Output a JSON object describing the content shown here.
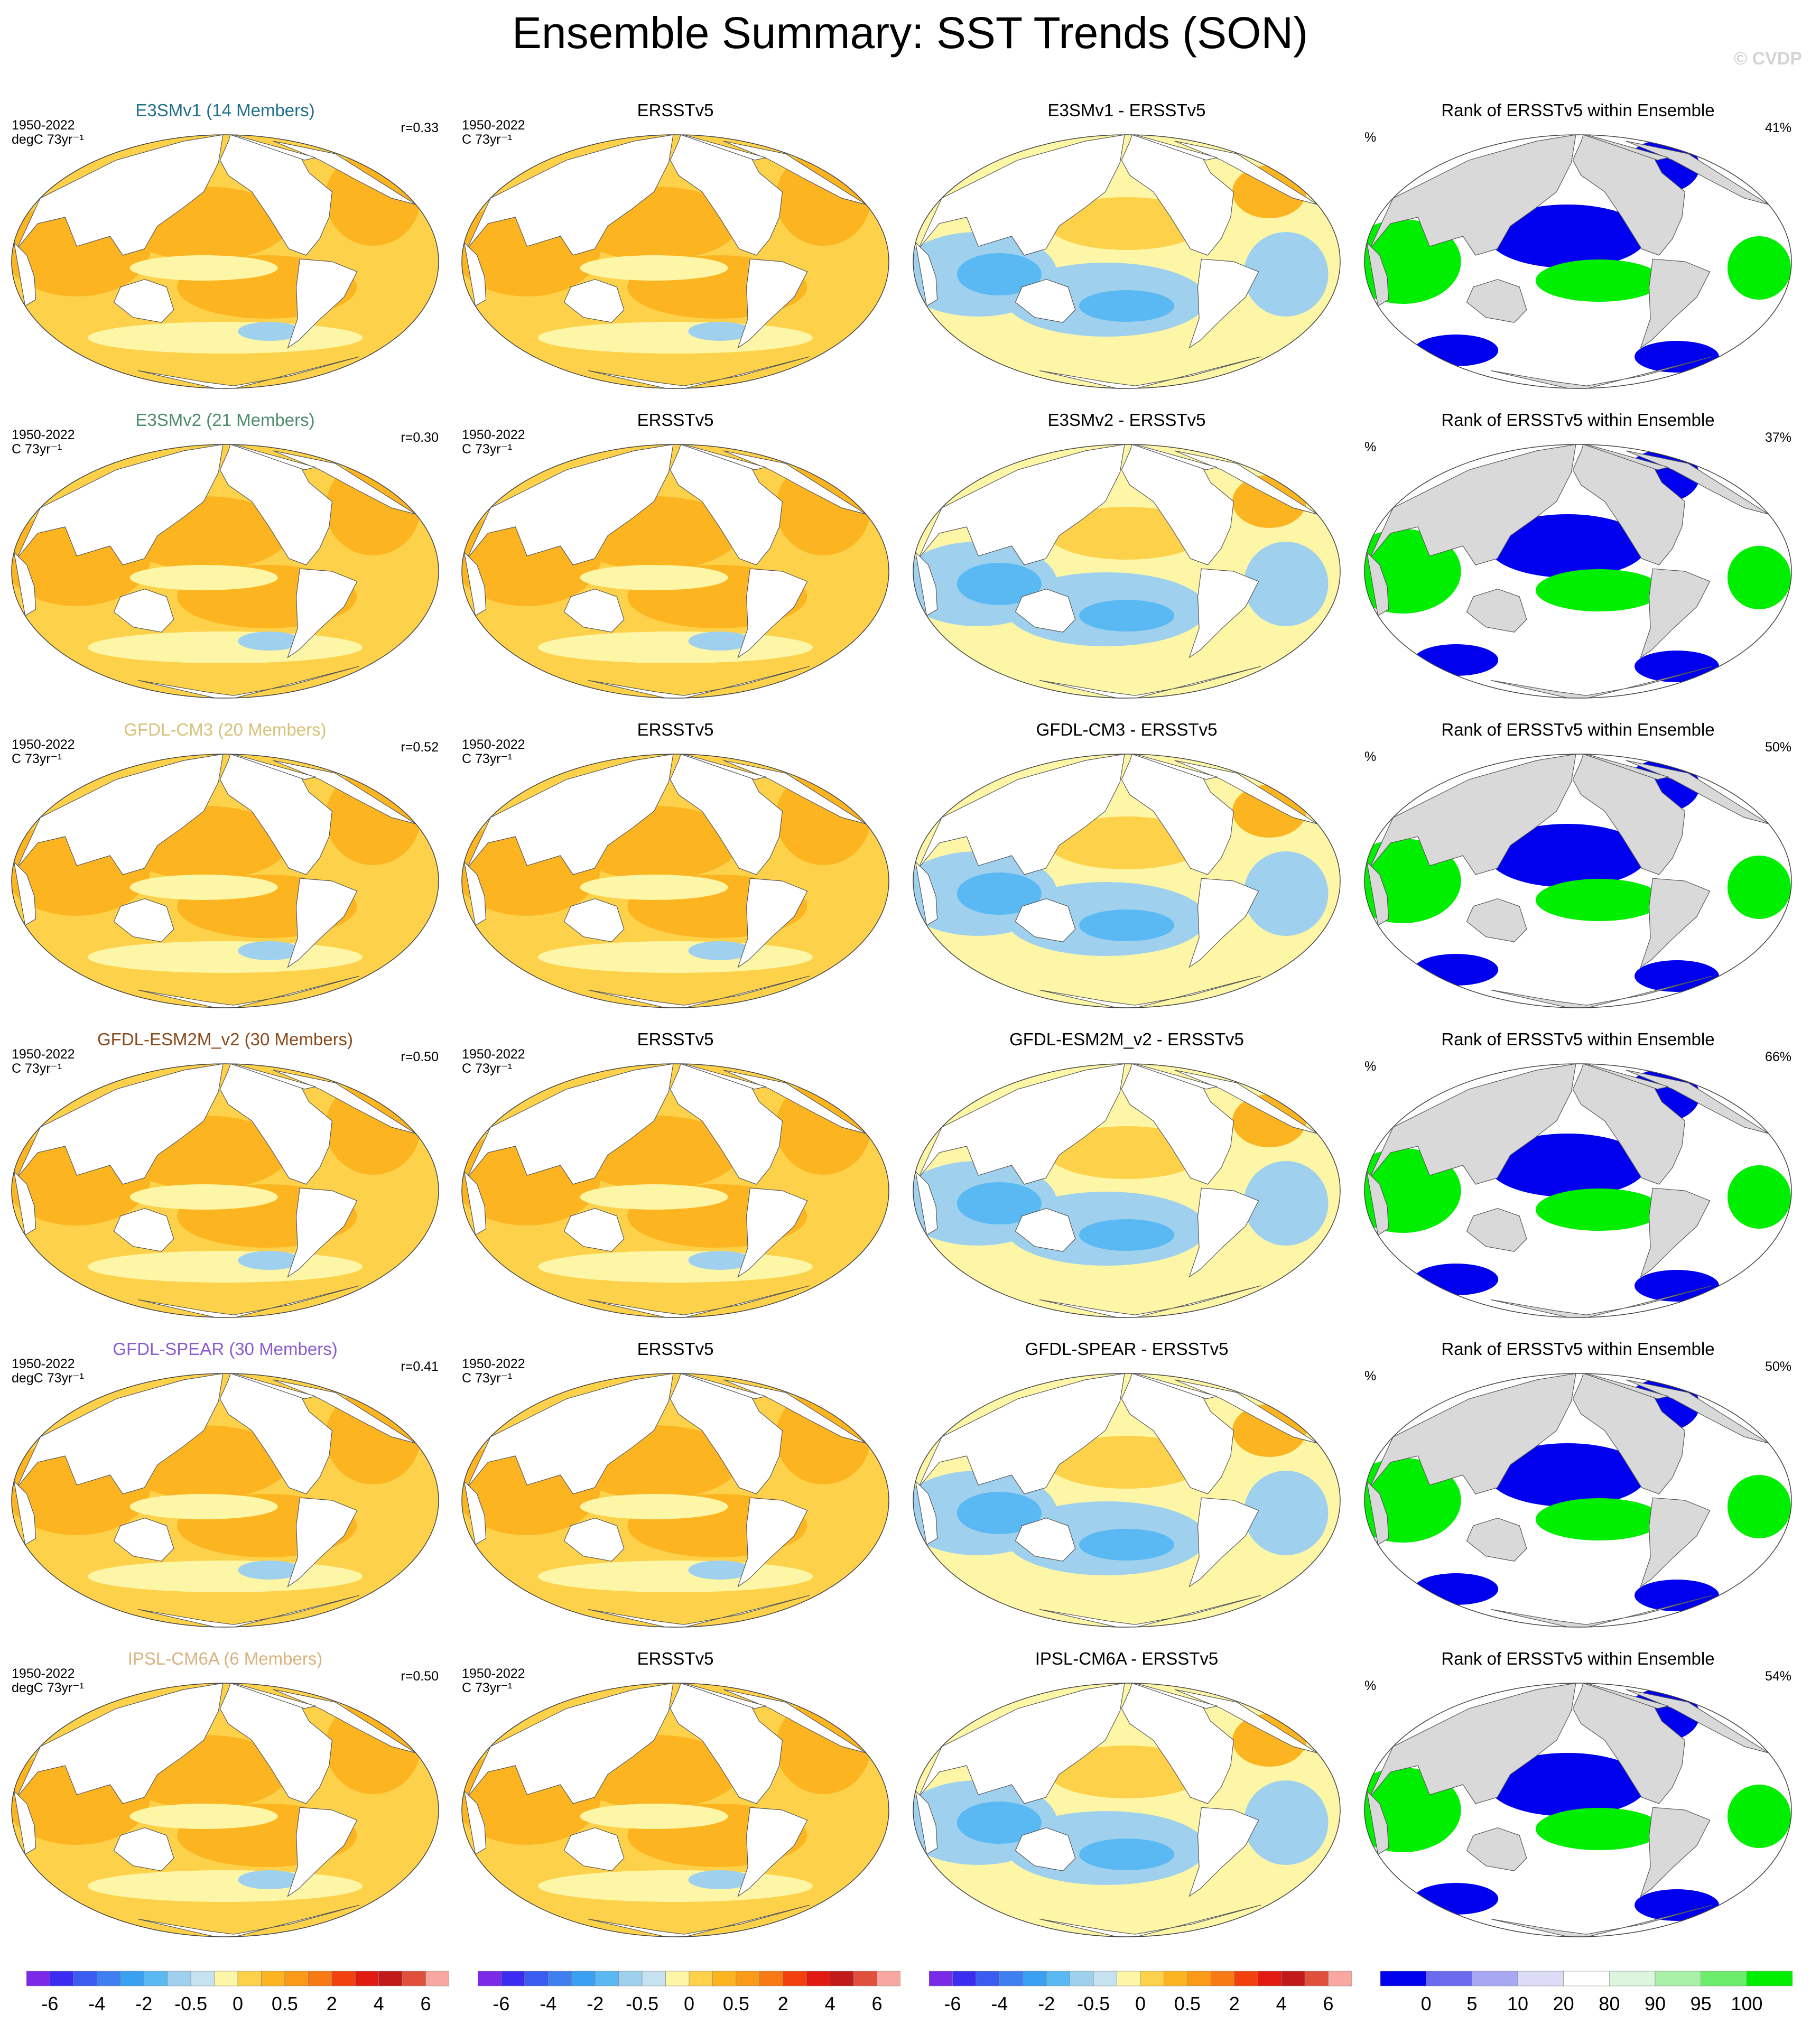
{
  "title": "Ensemble Summary: SST Trends (SON)",
  "watermark": "© CVDP",
  "obs_title": "ERSSTv5",
  "rank_title": "Rank of ERSSTv5 within Ensemble",
  "percent_symbol": "%",
  "period": "1950-2022",
  "obs_units": "C 73yr⁻¹",
  "rows": [
    {
      "model_title": "E3SMv1 (14 Members)",
      "title_color": "#1f6f8b",
      "units": "degC 73yr⁻¹",
      "r": "r=0.33",
      "diff_title": "E3SMv1 - ERSSTv5",
      "rank_pct": "41%"
    },
    {
      "model_title": "E3SMv2 (21 Members)",
      "title_color": "#4c8c6a",
      "units": "C 73yr⁻¹",
      "r": "r=0.30",
      "diff_title": "E3SMv2 - ERSSTv5",
      "rank_pct": "37%"
    },
    {
      "model_title": "GFDL-CM3 (20 Members)",
      "title_color": "#d6c27a",
      "units": "C 73yr⁻¹",
      "r": "r=0.52",
      "diff_title": "GFDL-CM3 - ERSSTv5",
      "rank_pct": "50%"
    },
    {
      "model_title": "GFDL-ESM2M_v2 (30 Members)",
      "title_color": "#8a4a1c",
      "units": "C 73yr⁻¹",
      "r": "r=0.50",
      "diff_title": "GFDL-ESM2M_v2 - ERSSTv5",
      "rank_pct": "66%"
    },
    {
      "model_title": "GFDL-SPEAR (30 Members)",
      "title_color": "#8a5cd0",
      "units": "degC 73yr⁻¹",
      "r": "r=0.41",
      "diff_title": "GFDL-SPEAR - ERSSTv5",
      "rank_pct": "50%"
    },
    {
      "model_title": "IPSL-CM6A (6 Members)",
      "title_color": "#d9b27f",
      "units": "degC 73yr⁻¹",
      "r": "r=0.50",
      "diff_title": "IPSL-CM6A - ERSSTv5",
      "rank_pct": "54%"
    }
  ],
  "colorbar_trend": {
    "colors": [
      "#7b2ae8",
      "#3a2cf0",
      "#3b5cf0",
      "#3f7ff0",
      "#3aa0f2",
      "#5ab9f2",
      "#9fd1ee",
      "#c6e2f0",
      "#fdf6a6",
      "#fdd24a",
      "#fcb521",
      "#fb9a19",
      "#f77a14",
      "#f2410f",
      "#e01a10",
      "#c21a1a",
      "#e1503c",
      "#f8a8a0"
    ],
    "labels": [
      "-6",
      "-4",
      "-2",
      "-0.5",
      "0",
      "0.5",
      "2",
      "4",
      "6"
    ]
  },
  "colorbar_rank": {
    "colors": [
      "#0000ee",
      "#6b6bf0",
      "#a8a8f2",
      "#dcdcf7",
      "#ffffff",
      "#dcf5dc",
      "#a8f0a8",
      "#6bec6b",
      "#00ee00"
    ],
    "labels": [
      "0",
      "5",
      "10",
      "20",
      "80",
      "90",
      "95",
      "100"
    ]
  },
  "colors": {
    "map_ocean_warm": "#fcb521",
    "map_ocean_mild": "#fdd24a",
    "map_ocean_light": "#fdf6a6",
    "map_cool": "#9fd1ee",
    "map_cool_strong": "#5ab9f2",
    "map_land_rank": "#d9d9d9",
    "rank_low": "#0000ee",
    "rank_high": "#00ee00"
  }
}
